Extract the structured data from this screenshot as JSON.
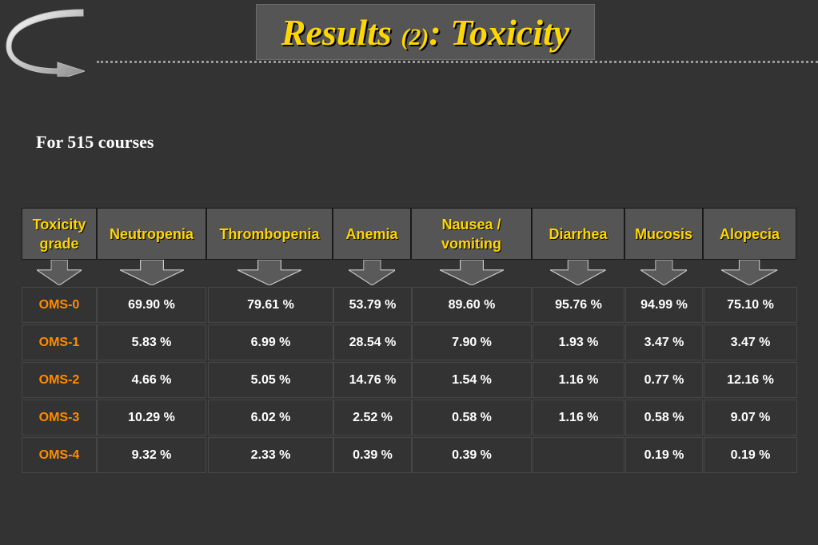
{
  "slide": {
    "title_main": "Results ",
    "title_num": "(2)",
    "title_tail": ": Toxicity",
    "subtitle": "For 515 courses"
  },
  "colors": {
    "background": "#333333",
    "title": "#FFD700",
    "grade_label": "#FF8C00",
    "header_text": "#FFD700",
    "cell_text": "#FFFFFF"
  },
  "icons": {
    "logo": "curved-arrow-icon",
    "column": "down-arrow-icon"
  },
  "table": {
    "headers": [
      "Toxicity grade",
      "Neutropenia",
      "Thrombopenia",
      "Anemia",
      "Nausea / vomiting",
      "Diarrhea",
      "Mucosis",
      "Alopecia"
    ],
    "rows": [
      [
        "OMS-0",
        "69.90 %",
        "79.61 %",
        "53.79 %",
        "89.60 %",
        "95.76 %",
        "94.99 %",
        "75.10 %"
      ],
      [
        "OMS-1",
        "5.83 %",
        "6.99 %",
        "28.54 %",
        "7.90 %",
        "1.93 %",
        "3.47 %",
        "3.47 %"
      ],
      [
        "OMS-2",
        "4.66 %",
        "5.05 %",
        "14.76 %",
        "1.54 %",
        "1.16 %",
        "0.77 %",
        "12.16 %"
      ],
      [
        "OMS-3",
        "10.29 %",
        "6.02 %",
        "2.52 %",
        "0.58 %",
        "1.16 %",
        "0.58 %",
        "9.07 %"
      ],
      [
        "OMS-4",
        "9.32 %",
        "2.33 %",
        "0.39 %",
        "0.39 %",
        "",
        "0.19 %",
        "0.19 %"
      ]
    ]
  }
}
